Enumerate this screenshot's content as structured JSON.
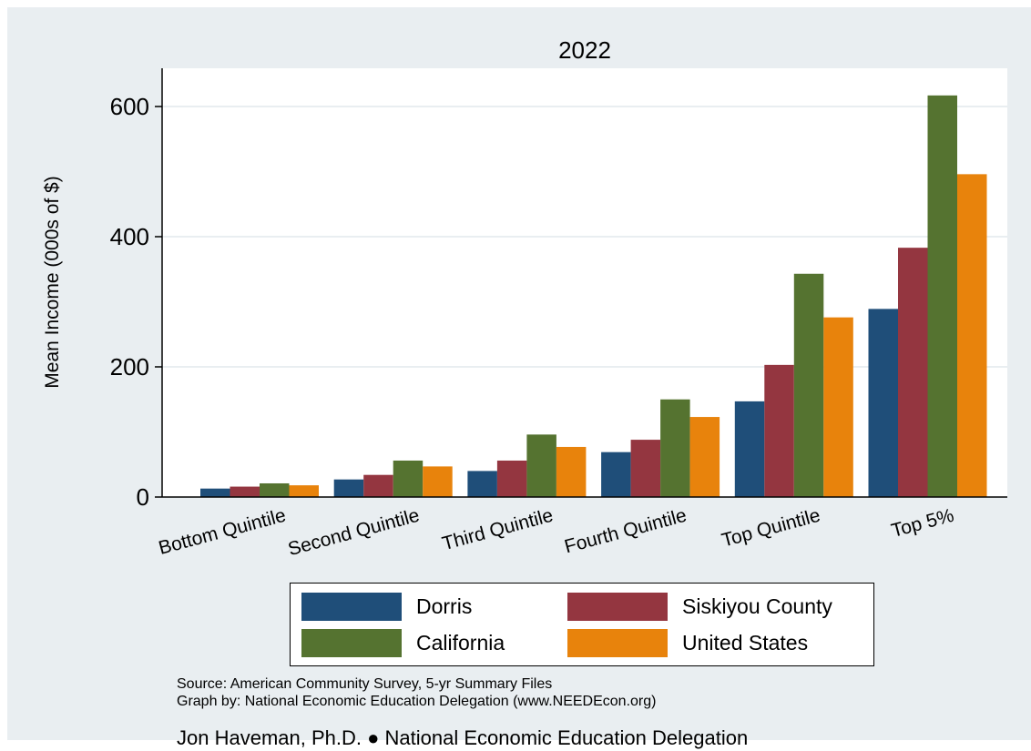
{
  "chart_data": {
    "type": "bar",
    "title": "2022",
    "ylabel": "Mean Income (000s of $)",
    "xlabel": "",
    "ylim": [
      0,
      660
    ],
    "yticks": [
      0,
      200,
      400,
      600
    ],
    "grid": true,
    "legend_position": "bottom",
    "categories": [
      "Bottom Quintile",
      "Second Quintile",
      "Third Quintile",
      "Fourth Quintile",
      "Top Quintile",
      "Top 5%"
    ],
    "series": [
      {
        "name": "Dorris",
        "color": "#1f4e79",
        "values": [
          13,
          27,
          40,
          69,
          147,
          289
        ]
      },
      {
        "name": "Siskiyou County",
        "color": "#943640",
        "values": [
          16,
          34,
          56,
          88,
          203,
          383
        ]
      },
      {
        "name": "California",
        "color": "#557330",
        "values": [
          21,
          56,
          96,
          150,
          343,
          617
        ]
      },
      {
        "name": "United States",
        "color": "#e8830c",
        "values": [
          18,
          47,
          77,
          123,
          276,
          496
        ]
      }
    ]
  },
  "source_lines": [
    "Source: American Community Survey, 5-yr Summary Files",
    "Graph by: National Economic Education Delegation (www.NEEDEcon.org)"
  ],
  "footer": "Jon Haveman, Ph.D. ● National Economic Education Delegation"
}
